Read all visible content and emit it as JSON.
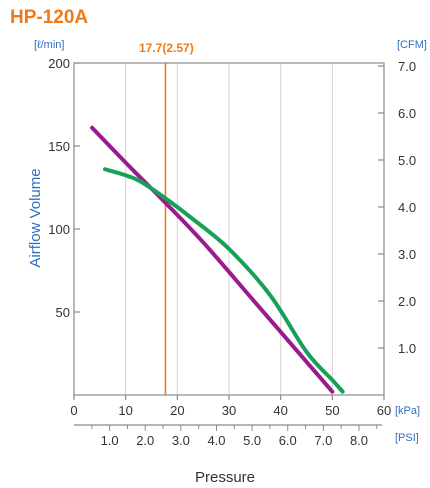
{
  "chart_data": {
    "type": "line",
    "title": "HP-120A",
    "xlabel": "Pressure",
    "ylabel": "Airflow Volume",
    "x_unit_primary": "[kPa]",
    "x_unit_secondary": "[PSI]",
    "y_unit_left": "[ℓ/min]",
    "y_unit_right": "[CFM]",
    "xlim": [
      0,
      60
    ],
    "ylim": [
      0,
      200
    ],
    "x_ticks": [
      "0",
      "10",
      "20",
      "30",
      "40",
      "50",
      "60"
    ],
    "y_ticks": [
      "50",
      "100",
      "150",
      "200"
    ],
    "psi_ticks": [
      "1.0",
      "2.0",
      "3.0",
      "4.0",
      "5.0",
      "6.0",
      "7.0",
      "8.0"
    ],
    "cfm_ticks": [
      "1.0",
      "2.0",
      "3.0",
      "4.0",
      "5.0",
      "6.0",
      "7.0"
    ],
    "marker": {
      "x": 17.7,
      "label": "17.7(2.57)"
    },
    "series": [
      {
        "color": "#9b1a8e",
        "x": [
          3.5,
          10,
          17,
          25,
          35,
          45,
          50
        ],
        "y": [
          161,
          140,
          118,
          92,
          56,
          20,
          2
        ]
      },
      {
        "color": "#16a05a",
        "x": [
          6,
          12,
          17,
          23,
          30,
          38,
          45,
          50,
          52
        ],
        "y": [
          136,
          130,
          120,
          106,
          88,
          60,
          26,
          9,
          2
        ]
      }
    ],
    "grid": "vertical"
  },
  "colors": {
    "title": "#f07a18",
    "axis_text": "#2f6fc0",
    "marker": "#f07a18"
  }
}
